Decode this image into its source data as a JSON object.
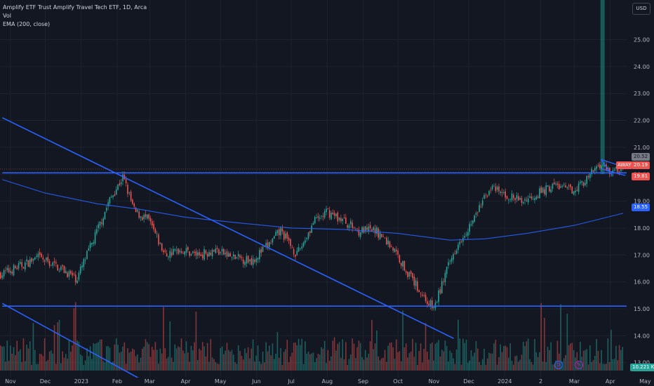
{
  "legend": {
    "title": "Amplify ETF Trust Amplify Travel Tech ETF, 1D, Arca",
    "vol": "Vol",
    "ema": "EMA (200, close)"
  },
  "currency": "USD",
  "price_tags": {
    "high": "20.52",
    "symbol": "AWAY",
    "last": "20.19",
    "low": "19.81",
    "ema": "18.55",
    "volume": "10.221 K"
  },
  "colors": {
    "background": "#131722",
    "up": "#26a69a",
    "down": "#ef5350",
    "trendline": "#2962ff",
    "ema": "#2962ff"
  },
  "chart_data": {
    "type": "candlestick",
    "title": "Amplify ETF Trust Amplify Travel Tech ETF, 1D, Arca",
    "y_ticks": [
      13.0,
      14.0,
      15.0,
      16.0,
      17.0,
      18.0,
      19.0,
      20.0,
      21.0,
      22.0,
      23.0,
      24.0,
      25.0
    ],
    "y_tick_labels": [
      "13.00",
      "14.00",
      "15.00",
      "16.00",
      "17.00",
      "18.00",
      "19.00",
      "20.00",
      "21.00",
      "22.00",
      "23.00",
      "24.00",
      "25.00"
    ],
    "ylim": [
      12.2,
      26.4
    ],
    "x_labels": [
      "Nov",
      "Dec",
      "2023",
      "Feb",
      "Mar",
      "Apr",
      "May",
      "Jun",
      "Jul",
      "Aug",
      "Sep",
      "Oct",
      "Nov",
      "Dec",
      "2024",
      "2",
      "Mar",
      "Apr",
      "May"
    ],
    "grid": true,
    "price_path": [
      [
        "2022-10-25",
        16.3
      ],
      [
        "2022-11-10",
        16.6
      ],
      [
        "2022-11-25",
        16.9
      ],
      [
        "2022-12-15",
        16.5
      ],
      [
        "2022-12-28",
        16.1
      ],
      [
        "2023-01-12",
        17.6
      ],
      [
        "2023-01-25",
        19.0
      ],
      [
        "2023-02-06",
        19.9
      ],
      [
        "2023-02-16",
        18.6
      ],
      [
        "2023-02-28",
        18.3
      ],
      [
        "2023-03-14",
        17.0
      ],
      [
        "2023-03-28",
        17.2
      ],
      [
        "2023-04-12",
        17.0
      ],
      [
        "2023-04-26",
        17.2
      ],
      [
        "2023-05-12",
        16.9
      ],
      [
        "2023-05-28",
        16.8
      ],
      [
        "2023-06-12",
        17.4
      ],
      [
        "2023-06-22",
        17.9
      ],
      [
        "2023-07-06",
        17.0
      ],
      [
        "2023-07-20",
        18.2
      ],
      [
        "2023-08-01",
        18.6
      ],
      [
        "2023-08-14",
        18.3
      ],
      [
        "2023-08-28",
        17.9
      ],
      [
        "2023-09-12",
        17.9
      ],
      [
        "2023-09-26",
        17.3
      ],
      [
        "2023-10-10",
        16.3
      ],
      [
        "2023-10-24",
        15.4
      ],
      [
        "2023-11-01",
        15.0
      ],
      [
        "2023-11-10",
        16.2
      ],
      [
        "2023-11-22",
        17.5
      ],
      [
        "2023-12-05",
        18.3
      ],
      [
        "2023-12-19",
        19.5
      ],
      [
        "2024-01-02",
        19.2
      ],
      [
        "2024-01-16",
        19.0
      ],
      [
        "2024-01-30",
        19.3
      ],
      [
        "2024-02-13",
        19.6
      ],
      [
        "2024-02-27",
        19.4
      ],
      [
        "2024-03-12",
        19.8
      ],
      [
        "2024-03-22",
        20.4
      ],
      [
        "2024-04-02",
        20.1
      ],
      [
        "2024-04-12",
        20.19
      ]
    ],
    "ema_200": [
      [
        "2022-10-25",
        19.8
      ],
      [
        "2022-12-01",
        19.3
      ],
      [
        "2023-01-15",
        18.9
      ],
      [
        "2023-02-20",
        18.7
      ],
      [
        "2023-04-01",
        18.4
      ],
      [
        "2023-05-15",
        18.2
      ],
      [
        "2023-07-01",
        18.0
      ],
      [
        "2023-08-15",
        17.95
      ],
      [
        "2023-10-01",
        17.8
      ],
      [
        "2023-11-15",
        17.55
      ],
      [
        "2023-12-15",
        17.6
      ],
      [
        "2024-01-20",
        17.8
      ],
      [
        "2024-03-01",
        18.1
      ],
      [
        "2024-04-12",
        18.55
      ]
    ],
    "trendlines": [
      {
        "from": [
          "2022-10-25",
          22.1
        ],
        "to": [
          "2023-11-18",
          13.9
        ]
      },
      {
        "from": [
          "2022-10-25",
          15.2
        ],
        "to": [
          "2023-03-01",
          12.2
        ]
      },
      {
        "from": [
          "2022-10-25",
          20.05
        ],
        "to": [
          "2024-04-18",
          20.05
        ]
      },
      {
        "from": [
          "2022-10-25",
          15.1
        ],
        "to": [
          "2024-04-18",
          15.1
        ]
      }
    ],
    "volume_spike_date": "2024-03-25"
  }
}
